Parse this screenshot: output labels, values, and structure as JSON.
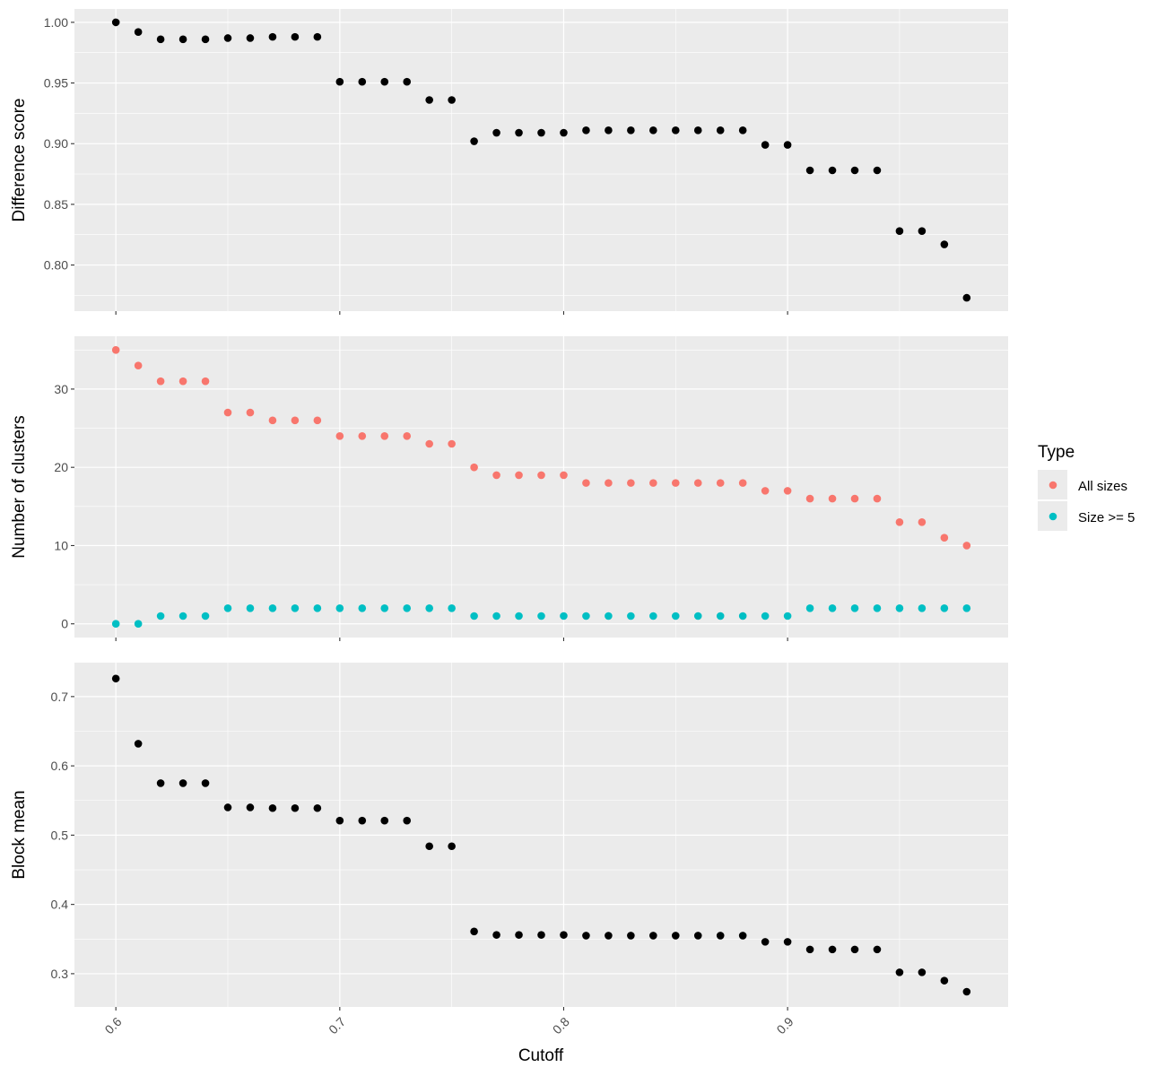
{
  "chart_data": {
    "type": "scatter",
    "x": [
      0.6,
      0.61,
      0.62,
      0.63,
      0.64,
      0.65,
      0.66,
      0.67,
      0.68,
      0.69,
      0.7,
      0.71,
      0.72,
      0.73,
      0.74,
      0.75,
      0.76,
      0.77,
      0.78,
      0.79,
      0.8,
      0.81,
      0.82,
      0.83,
      0.84,
      0.85,
      0.86,
      0.87,
      0.88,
      0.89,
      0.9,
      0.91,
      0.92,
      0.93,
      0.94,
      0.95,
      0.96,
      0.97,
      0.98
    ],
    "xlabel": "Cutoff",
    "xlim": [
      0.5815,
      0.9985
    ],
    "x_ticks": [
      0.6,
      0.7,
      0.8,
      0.9
    ],
    "x_tick_labels": [
      "0.6",
      "0.7",
      "0.8",
      "0.9"
    ],
    "grid": true,
    "legend_position": "right",
    "legend": {
      "title": "Type",
      "entries": [
        {
          "label": "All sizes",
          "color": "#F8766D"
        },
        {
          "label": "Size >= 5",
          "color": "#00BFC4"
        }
      ]
    },
    "panels": [
      {
        "ylabel": "Difference score",
        "ylim": [
          0.762,
          1.011
        ],
        "y_ticks": [
          0.8,
          0.85,
          0.9,
          0.95,
          1.0
        ],
        "y_tick_labels": [
          "0.80",
          "0.85",
          "0.90",
          "0.95",
          "1.00"
        ],
        "series": [
          {
            "color": "#000000",
            "values": [
              1.0,
              0.992,
              0.986,
              0.986,
              0.986,
              0.987,
              0.987,
              0.988,
              0.988,
              0.988,
              0.951,
              0.951,
              0.951,
              0.951,
              0.936,
              0.936,
              0.902,
              0.909,
              0.909,
              0.909,
              0.909,
              0.911,
              0.911,
              0.911,
              0.911,
              0.911,
              0.911,
              0.911,
              0.911,
              0.899,
              0.899,
              0.878,
              0.878,
              0.878,
              0.878,
              0.828,
              0.828,
              0.817,
              0.773
            ]
          }
        ]
      },
      {
        "ylabel": "Number of clusters",
        "ylim": [
          -1.75,
          36.75
        ],
        "y_ticks": [
          0,
          10,
          20,
          30
        ],
        "y_tick_labels": [
          "0",
          "10",
          "20",
          "30"
        ],
        "series": [
          {
            "name": "All sizes",
            "color": "#F8766D",
            "values": [
              35,
              33,
              31,
              31,
              31,
              27,
              27,
              26,
              26,
              26,
              24,
              24,
              24,
              24,
              23,
              23,
              20,
              19,
              19,
              19,
              19,
              18,
              18,
              18,
              18,
              18,
              18,
              18,
              18,
              17,
              17,
              16,
              16,
              16,
              16,
              13,
              13,
              11,
              10
            ]
          },
          {
            "name": "Size >= 5",
            "color": "#00BFC4",
            "values": [
              0,
              0,
              1,
              1,
              1,
              2,
              2,
              2,
              2,
              2,
              2,
              2,
              2,
              2,
              2,
              2,
              1,
              1,
              1,
              1,
              1,
              1,
              1,
              1,
              1,
              1,
              1,
              1,
              1,
              1,
              1,
              2,
              2,
              2,
              2,
              2,
              2,
              2,
              2
            ]
          }
        ]
      },
      {
        "ylabel": "Block mean",
        "ylim": [
          0.252,
          0.749
        ],
        "y_ticks": [
          0.3,
          0.4,
          0.5,
          0.6,
          0.7
        ],
        "y_tick_labels": [
          "0.3",
          "0.4",
          "0.5",
          "0.6",
          "0.7"
        ],
        "series": [
          {
            "color": "#000000",
            "values": [
              0.726,
              0.632,
              0.575,
              0.575,
              0.575,
              0.54,
              0.54,
              0.539,
              0.539,
              0.539,
              0.521,
              0.521,
              0.521,
              0.521,
              0.484,
              0.484,
              0.361,
              0.356,
              0.356,
              0.356,
              0.356,
              0.355,
              0.355,
              0.355,
              0.355,
              0.355,
              0.355,
              0.355,
              0.355,
              0.346,
              0.346,
              0.335,
              0.335,
              0.335,
              0.335,
              0.302,
              0.302,
              0.29,
              0.274
            ]
          }
        ]
      }
    ]
  }
}
